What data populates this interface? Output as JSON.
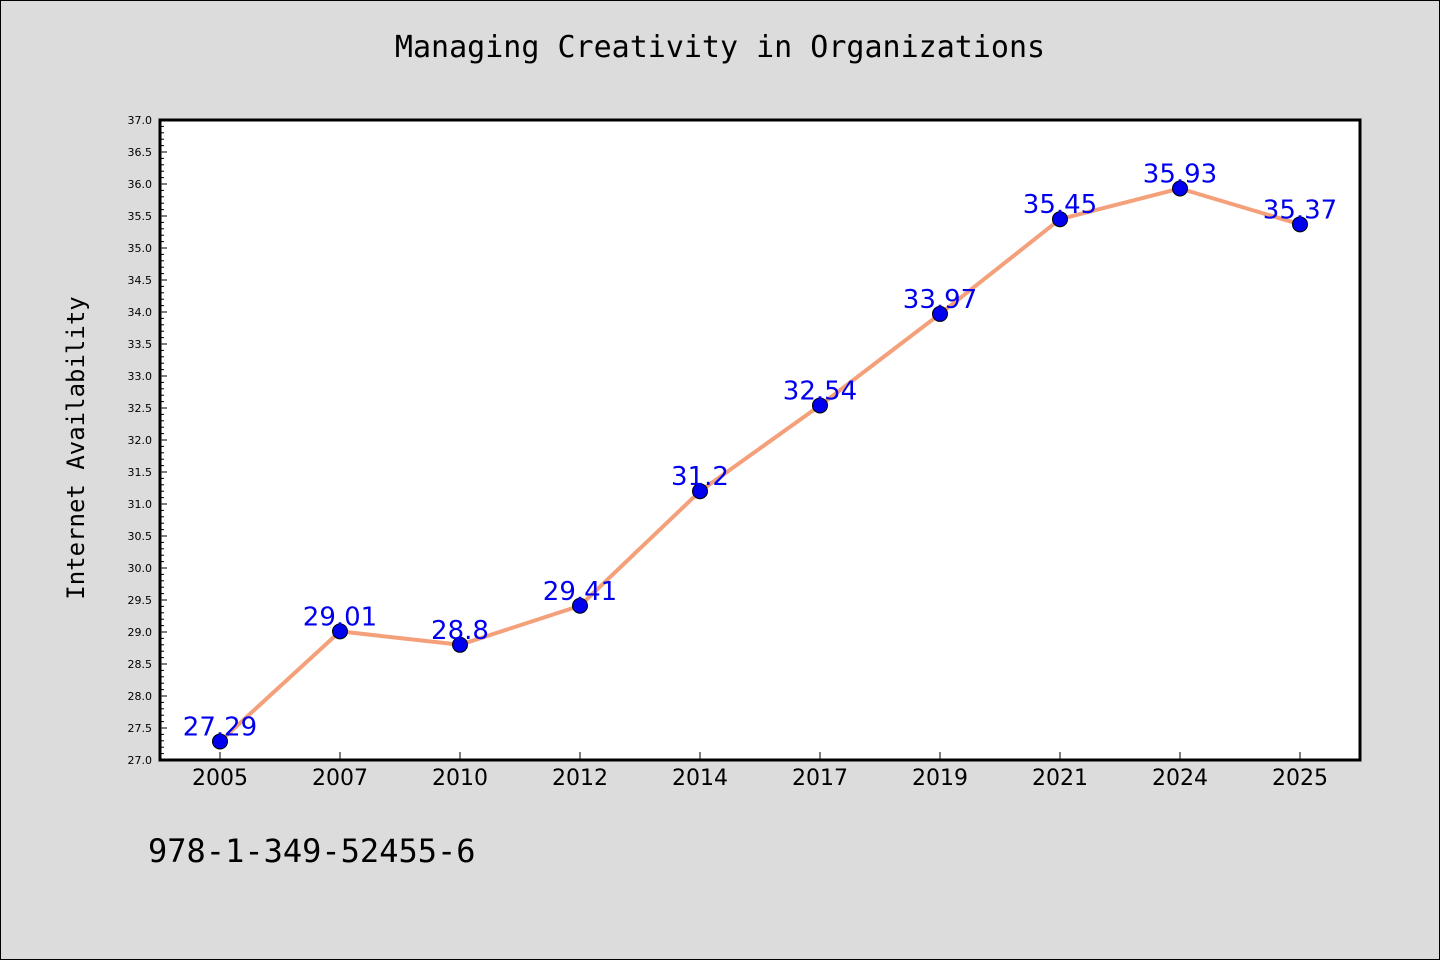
{
  "chart_data": {
    "type": "line",
    "title": "Managing Creativity in Organizations",
    "xlabel": "",
    "ylabel": "Internet Availability",
    "categories": [
      "2005",
      "2007",
      "2010",
      "2012",
      "2014",
      "2017",
      "2019",
      "2021",
      "2024",
      "2025"
    ],
    "values": [
      27.29,
      29.01,
      28.8,
      29.41,
      31.2,
      32.54,
      33.97,
      35.45,
      35.93,
      35.37
    ],
    "data_labels": [
      "27.29",
      "29.01",
      "28.8",
      "29.41",
      "31.2",
      "32.54",
      "33.97",
      "35.45",
      "35.93",
      "35.37"
    ],
    "ylim": [
      27.0,
      37.0
    ],
    "ytick_labels": [
      "27.0",
      "27.5",
      "28.0",
      "28.5",
      "29.0",
      "29.5",
      "30.0",
      "30.5",
      "31.0",
      "31.5",
      "32.0",
      "32.5",
      "33.0",
      "33.5",
      "34.0",
      "34.5",
      "35.0",
      "35.5",
      "36.0",
      "36.5",
      "37.0"
    ],
    "grid": false,
    "line_color": "#f4a07a",
    "marker_color": "#0000ee",
    "label_color": "#0000ee"
  },
  "footer": {
    "isbn": "978-1-349-52455-6"
  }
}
